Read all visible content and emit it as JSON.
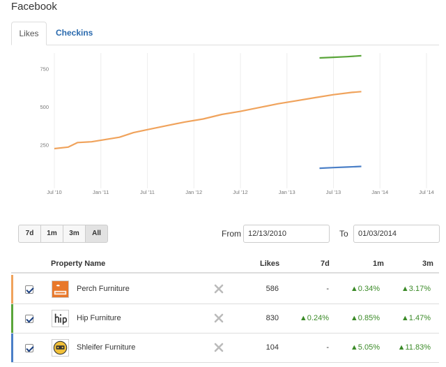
{
  "page": {
    "title": "Facebook"
  },
  "tabs": [
    {
      "label": "Likes",
      "active": true
    },
    {
      "label": "Checkins",
      "active": false
    }
  ],
  "chart_data": {
    "type": "line",
    "title": "",
    "x_ticks": [
      "Jul '10",
      "Jan '11",
      "Jul '11",
      "Jan '12",
      "Jul '12",
      "Jan '13",
      "Jul '13",
      "Jan '14",
      "Jul '14"
    ],
    "y_ticks": [
      250,
      500,
      750
    ],
    "ylim": [
      0,
      900
    ],
    "grid": true,
    "series": [
      {
        "name": "Perch Furniture",
        "color": "#f0a35c",
        "points": [
          [
            0.0,
            225
          ],
          [
            0.15,
            235
          ],
          [
            0.25,
            265
          ],
          [
            0.4,
            270
          ],
          [
            0.55,
            285
          ],
          [
            0.7,
            300
          ],
          [
            0.85,
            330
          ],
          [
            1.0,
            350
          ],
          [
            1.2,
            375
          ],
          [
            1.4,
            400
          ],
          [
            1.6,
            420
          ],
          [
            1.8,
            450
          ],
          [
            2.0,
            470
          ],
          [
            2.2,
            495
          ],
          [
            2.4,
            520
          ],
          [
            2.6,
            540
          ],
          [
            2.8,
            560
          ],
          [
            3.0,
            580
          ],
          [
            3.2,
            595
          ],
          [
            3.3,
            600
          ]
        ]
      },
      {
        "name": "Hip Furniture",
        "color": "#5aa53a",
        "points": [
          [
            2.85,
            822
          ],
          [
            3.0,
            826
          ],
          [
            3.15,
            830
          ],
          [
            3.3,
            836
          ]
        ]
      },
      {
        "name": "Shleifer Furniture",
        "color": "#4a7fc7",
        "points": [
          [
            2.85,
            96
          ],
          [
            3.0,
            100
          ],
          [
            3.15,
            104
          ],
          [
            3.3,
            108
          ]
        ]
      }
    ]
  },
  "controls": {
    "ranges": [
      "7d",
      "1m",
      "3m",
      "All"
    ],
    "from_label": "From",
    "to_label": "To",
    "from_value": "12/13/2010",
    "to_value": "01/03/2014"
  },
  "table": {
    "headers": {
      "name": "Property Name",
      "likes": "Likes",
      "d7": "7d",
      "m1": "1m",
      "m3": "3m"
    },
    "rows": [
      {
        "accent": "#f0a35c",
        "name": "Perch Furniture",
        "logo_icon": "perch-logo-icon",
        "likes": "586",
        "d7": "-",
        "m1": "▲0.34%",
        "m3": "▲3.17%"
      },
      {
        "accent": "#5aa53a",
        "name": "Hip Furniture",
        "logo_icon": "hip-logo-icon",
        "likes": "830",
        "d7": "▲0.24%",
        "m1": "▲0.85%",
        "m3": "▲1.47%"
      },
      {
        "accent": "#4a7fc7",
        "name": "Shleifer Furniture",
        "logo_icon": "shleifer-logo-icon",
        "likes": "104",
        "d7": "-",
        "m1": "▲5.05%",
        "m3": "▲11.83%"
      }
    ]
  }
}
